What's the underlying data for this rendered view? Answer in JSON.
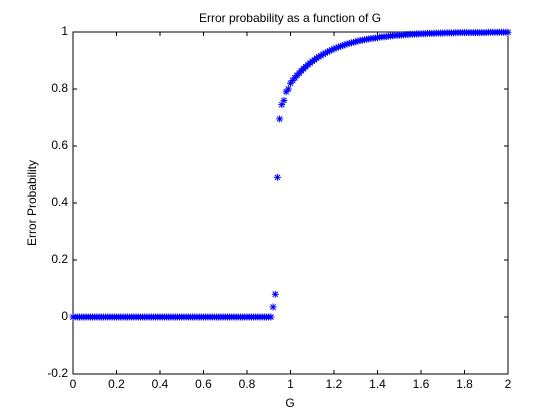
{
  "chart_data": {
    "type": "scatter",
    "title": "Error probability as a function of G",
    "xlabel": "G",
    "ylabel": "Error Probability",
    "marker": "*",
    "color": "#0000ff",
    "xlim": [
      0,
      2
    ],
    "xticks": [
      0,
      0.2,
      0.4,
      0.6,
      0.8,
      1,
      1.2,
      1.4,
      1.6,
      1.8,
      2
    ],
    "ylim": [
      -0.2,
      1
    ],
    "yticks": [
      -0.2,
      0,
      0.2,
      0.4,
      0.6,
      0.8,
      1
    ],
    "x": [
      0,
      0.01,
      0.02,
      0.03,
      0.04,
      0.05,
      0.06,
      0.07,
      0.08,
      0.09,
      0.1,
      0.11,
      0.12,
      0.13,
      0.14,
      0.15,
      0.16,
      0.17,
      0.18,
      0.19,
      0.2,
      0.21,
      0.22,
      0.23,
      0.24,
      0.25,
      0.26,
      0.27,
      0.28,
      0.29,
      0.3,
      0.31,
      0.32,
      0.33,
      0.34,
      0.35,
      0.36,
      0.37,
      0.38,
      0.39,
      0.4,
      0.41,
      0.42,
      0.43,
      0.44,
      0.45,
      0.46,
      0.47,
      0.48,
      0.49,
      0.5,
      0.51,
      0.52,
      0.53,
      0.54,
      0.55,
      0.56,
      0.57,
      0.58,
      0.59,
      0.6,
      0.61,
      0.62,
      0.63,
      0.64,
      0.65,
      0.66,
      0.67,
      0.68,
      0.69,
      0.7,
      0.71,
      0.72,
      0.73,
      0.74,
      0.75,
      0.76,
      0.77,
      0.78,
      0.79,
      0.8,
      0.81,
      0.82,
      0.83,
      0.84,
      0.85,
      0.86,
      0.87,
      0.88,
      0.89,
      0.9,
      0.91,
      0.92,
      0.93,
      0.94,
      0.95,
      0.96,
      0.97,
      0.98,
      0.99,
      1,
      1.01,
      1.02,
      1.03,
      1.04,
      1.05,
      1.06,
      1.07,
      1.08,
      1.09,
      1.1,
      1.11,
      1.12,
      1.13,
      1.14,
      1.15,
      1.16,
      1.17,
      1.18,
      1.19,
      1.2,
      1.21,
      1.22,
      1.23,
      1.24,
      1.25,
      1.26,
      1.27,
      1.28,
      1.29,
      1.3,
      1.31,
      1.32,
      1.33,
      1.34,
      1.35,
      1.36,
      1.37,
      1.38,
      1.39,
      1.4,
      1.41,
      1.42,
      1.43,
      1.44,
      1.45,
      1.46,
      1.47,
      1.48,
      1.49,
      1.5,
      1.51,
      1.52,
      1.53,
      1.54,
      1.55,
      1.56,
      1.57,
      1.58,
      1.59,
      1.6,
      1.61,
      1.62,
      1.63,
      1.64,
      1.65,
      1.66,
      1.67,
      1.68,
      1.69,
      1.7,
      1.71,
      1.72,
      1.73,
      1.74,
      1.75,
      1.76,
      1.77,
      1.78,
      1.79,
      1.8,
      1.81,
      1.82,
      1.83,
      1.84,
      1.85,
      1.86,
      1.87,
      1.88,
      1.89,
      1.9,
      1.91,
      1.92,
      1.93,
      1.94,
      1.95,
      1.96,
      1.97,
      1.98,
      1.99,
      2
    ],
    "values": [
      0,
      0,
      0,
      0,
      0,
      0,
      0,
      0,
      0,
      0,
      0,
      0,
      0,
      0,
      0,
      0,
      0,
      0,
      0,
      0,
      0,
      0,
      0,
      0,
      0,
      0,
      0,
      0,
      0,
      0,
      0,
      0,
      0,
      0,
      0,
      0,
      0,
      0,
      0,
      0,
      0,
      0,
      0,
      0,
      0,
      0,
      0,
      0,
      0,
      0,
      0,
      0,
      0,
      0,
      0,
      0,
      0,
      0,
      0,
      0,
      0,
      0,
      0,
      0,
      0,
      0,
      0,
      0,
      0,
      0,
      0,
      0,
      0,
      0,
      0,
      0,
      0,
      0,
      0,
      0,
      0,
      0,
      0,
      0,
      0,
      0,
      0,
      0,
      0,
      0,
      0,
      0,
      0.035,
      0.08,
      0.49,
      0.695,
      0.745,
      0.76,
      0.79,
      0.8,
      0.82,
      0.83,
      0.839,
      0.848,
      0.856,
      0.864,
      0.871,
      0.878,
      0.885,
      0.891,
      0.897,
      0.902,
      0.908,
      0.913,
      0.917,
      0.922,
      0.926,
      0.93,
      0.934,
      0.937,
      0.941,
      0.944,
      0.947,
      0.95,
      0.952,
      0.955,
      0.958,
      0.96,
      0.962,
      0.964,
      0.966,
      0.968,
      0.97,
      0.971,
      0.973,
      0.974,
      0.976,
      0.977,
      0.978,
      0.979,
      0.98,
      0.982,
      0.983,
      0.983,
      0.984,
      0.985,
      0.986,
      0.987,
      0.988,
      0.988,
      0.989,
      0.989,
      0.99,
      0.991,
      0.991,
      0.992,
      0.992,
      0.992,
      0.993,
      0.993,
      0.994,
      0.994,
      0.994,
      0.995,
      0.995,
      0.995,
      0.995,
      0.996,
      0.996,
      0.996,
      0.996,
      0.997,
      0.997,
      0.997,
      0.997,
      0.997,
      0.998,
      0.998,
      0.998,
      0.998,
      0.998,
      0.998,
      0.998,
      0.998,
      0.998,
      0.998,
      0.998,
      0.998,
      0.998,
      0.998,
      0.998,
      0.999,
      0.999,
      0.999,
      0.999,
      0.999,
      0.999,
      0.999,
      0.999,
      0.999,
      0.999
    ]
  }
}
